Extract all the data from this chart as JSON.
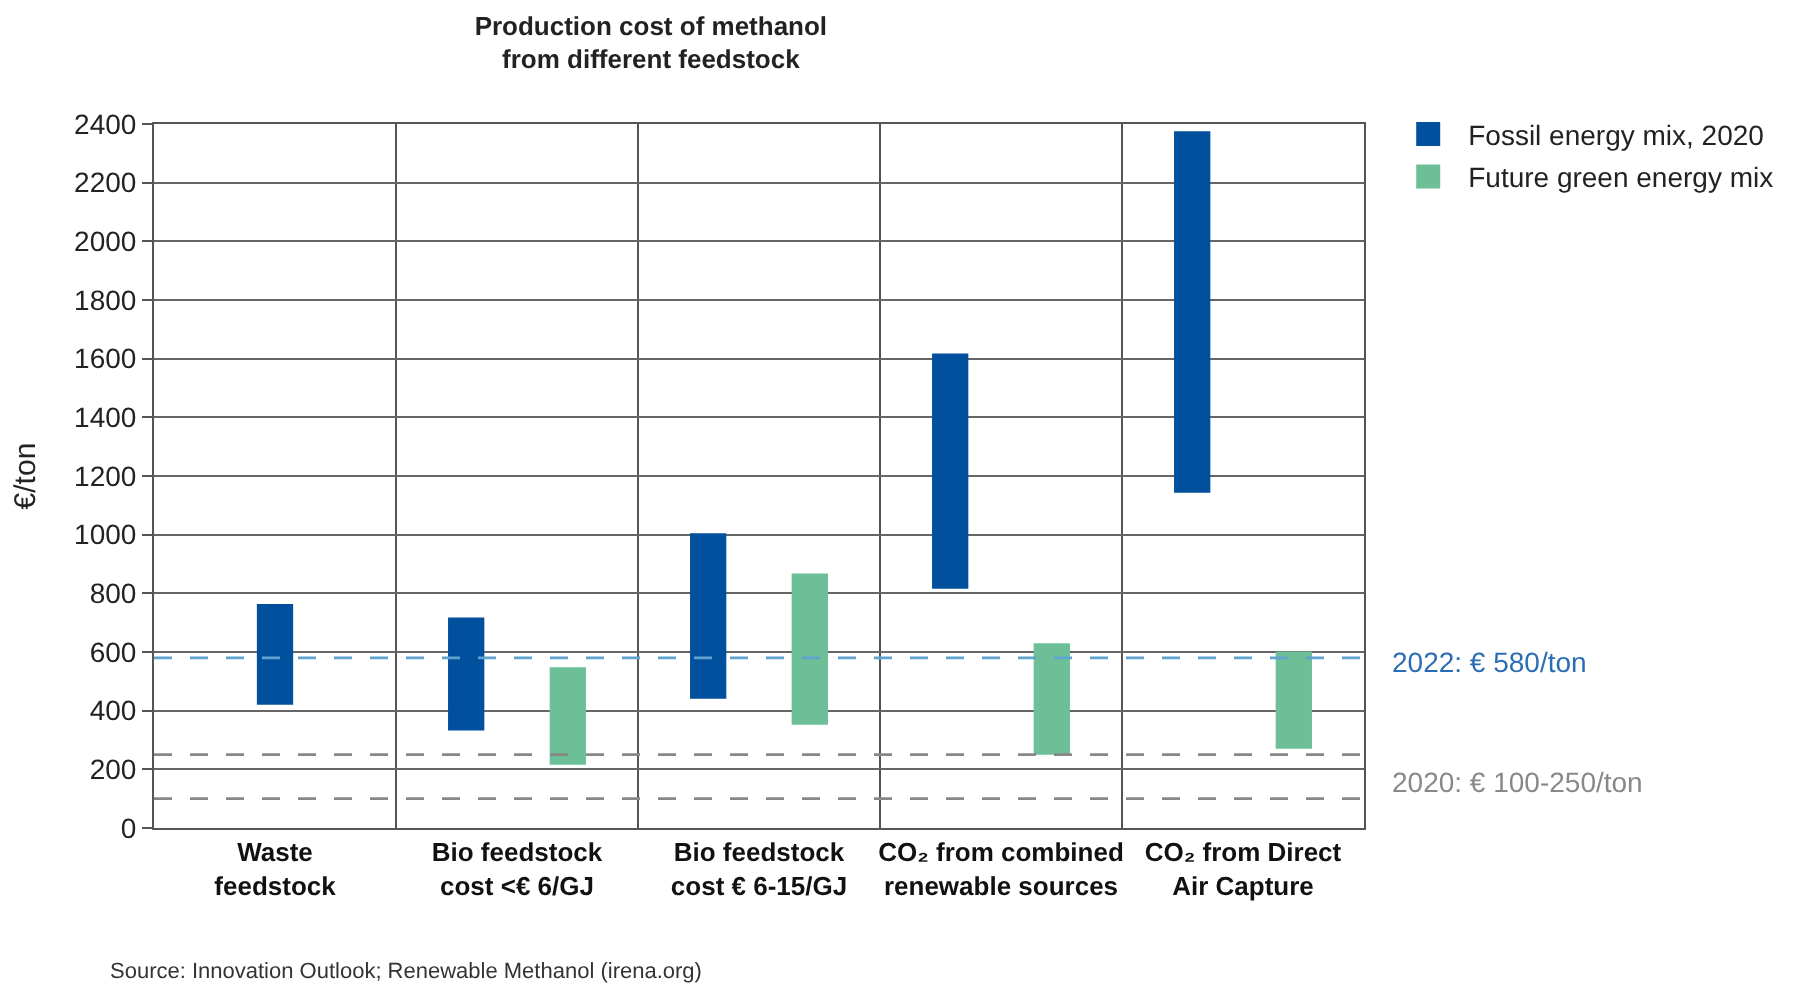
{
  "chart_data": {
    "type": "bar",
    "title": "Production cost of methanol\nfrom different feedstock",
    "ylabel": "€/ton",
    "categories": [
      "Waste feedstock",
      "Bio feedstock cost <€ 6/GJ",
      "Bio feedstock cost € 6-15/GJ",
      "CO₂ from combined renewable sources",
      "CO₂ from Direct Air Capture"
    ],
    "series": [
      {
        "name": "Fossil energy mix, 2020",
        "color": "#00509e",
        "base": [
          420,
          332,
          441,
          816,
          1143
        ],
        "values": [
          344,
          386,
          564,
          802,
          1232
        ]
      },
      {
        "name": "Future green energy mix",
        "color": "#6dbf98",
        "base": [
          null,
          216,
          352,
          250,
          270
        ],
        "values": [
          null,
          332,
          516,
          380,
          332
        ]
      }
    ],
    "ylim": [
      0,
      2400
    ],
    "yticks": [
      0,
      200,
      400,
      600,
      800,
      1000,
      1200,
      1400,
      1600,
      1800,
      2000,
      2200,
      2400
    ],
    "grid": true,
    "legend": "top right",
    "ref_lines": [
      {
        "axis": "y",
        "value": 580,
        "label": "2022: € 580/ton",
        "color": "#5fa3cf",
        "line_style": "dashed"
      },
      {
        "axis": "y",
        "value": 250,
        "label": "2020: € 100-250/ton",
        "color": "#888888",
        "line_style": "dashed"
      },
      {
        "axis": "y",
        "value": 100,
        "label": null,
        "color": "#888888",
        "line_style": "dashed"
      }
    ],
    "annotations": [
      "Source: Innovation Outlook; Renewable Methanol (irena.org)"
    ]
  }
}
